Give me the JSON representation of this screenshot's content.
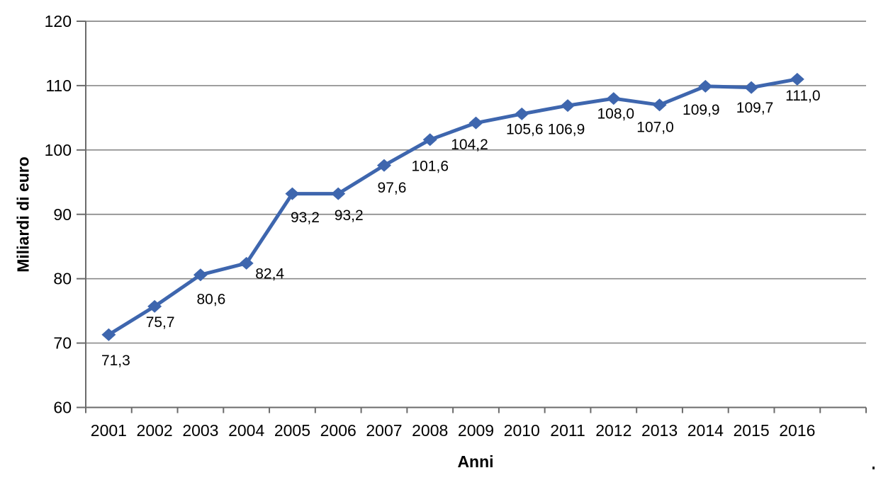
{
  "chart_data": {
    "type": "line",
    "title": "",
    "xlabel": "Anni",
    "ylabel": "Miliardi di euro",
    "categories": [
      "2001",
      "2002",
      "2003",
      "2004",
      "2005",
      "2006",
      "2007",
      "2008",
      "2009",
      "2010",
      "2011",
      "2012",
      "2013",
      "2014",
      "2015",
      "2016"
    ],
    "values": [
      71.3,
      75.7,
      80.6,
      82.4,
      93.2,
      93.2,
      97.6,
      101.6,
      104.2,
      105.6,
      106.9,
      108.0,
      107.0,
      109.9,
      109.7,
      111.0
    ],
    "data_labels": [
      "71,3",
      "75,7",
      "80,6",
      "82,4",
      "93,2",
      "93,2",
      "97,6",
      "101,6",
      "104,2",
      "105,6",
      "106,9",
      "108,0",
      "107,0",
      "109,9",
      "109,7",
      "111,0"
    ],
    "yticks": [
      60,
      70,
      80,
      90,
      100,
      110,
      120
    ],
    "ytick_labels": [
      "60",
      "70",
      "80",
      "90",
      "100",
      "110",
      "120"
    ],
    "ylim": [
      60,
      120
    ],
    "grid": "horizontal",
    "legend": "none",
    "marker": "diamond",
    "extra_empty_slots": 1,
    "colors": {
      "line": "#3E66AE",
      "gridline": "#8A8A8A",
      "axis": "#6B6B6B",
      "text": "#000000"
    }
  }
}
